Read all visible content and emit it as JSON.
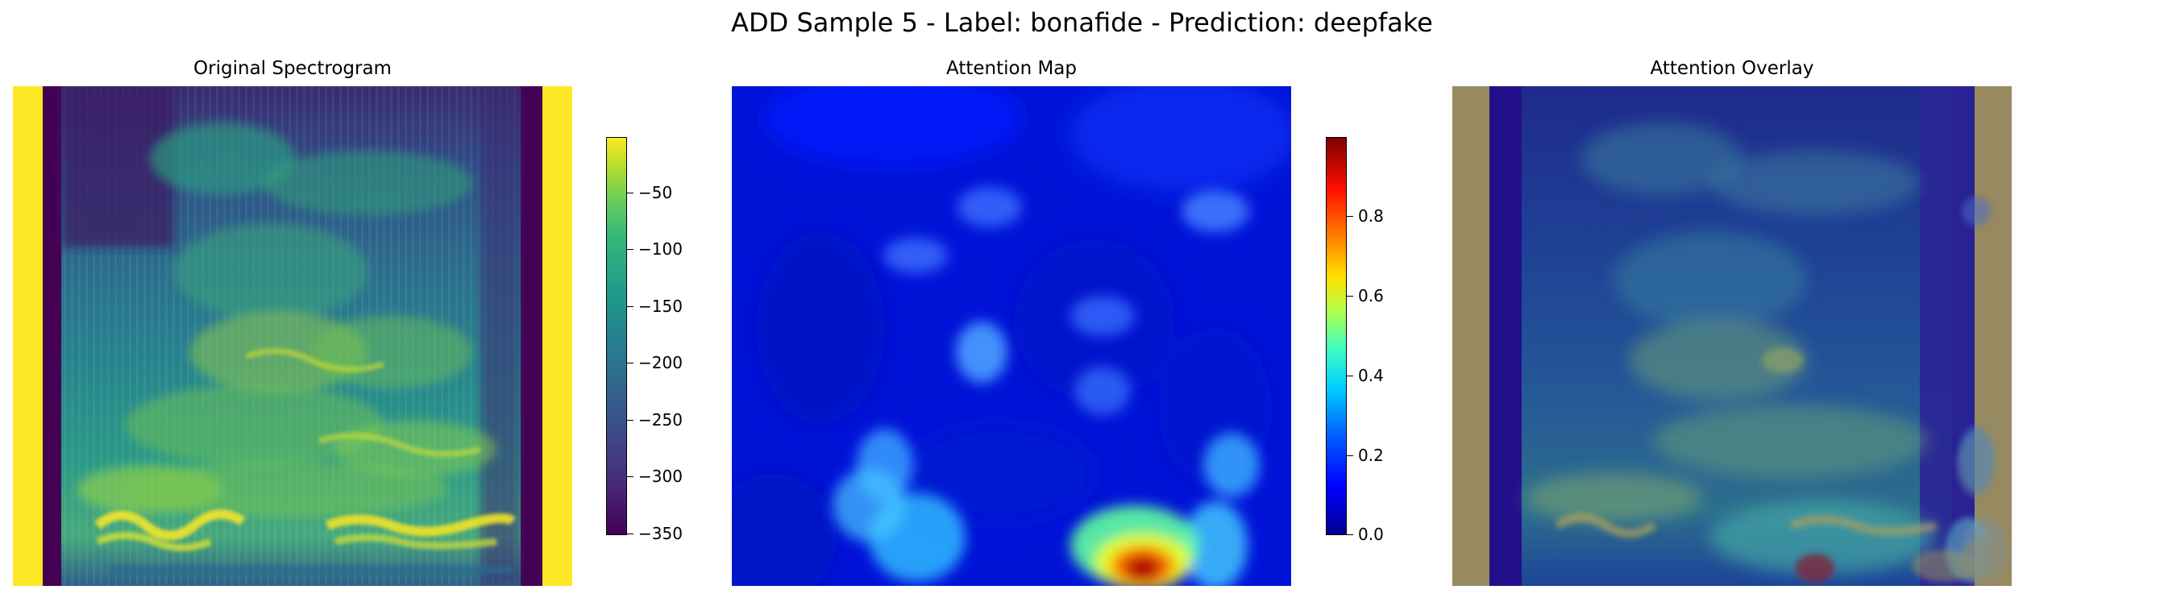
{
  "figure": {
    "title": "ADD Sample 5 - Label: bonafide - Prediction: deepfake"
  },
  "panels": [
    {
      "title": "Original Spectrogram"
    },
    {
      "title": "Attention Map"
    },
    {
      "title": "Attention Overlay"
    }
  ],
  "colorbars": {
    "spectrogram": {
      "colormap": "viridis",
      "ticks": [
        "−50",
        "−100",
        "−150",
        "−200",
        "−250",
        "−300",
        "−350"
      ],
      "tick_values": [
        -50,
        -100,
        -150,
        -200,
        -250,
        -300,
        -350
      ],
      "range": [
        -355,
        -5
      ]
    },
    "attention": {
      "colormap": "jet",
      "ticks": [
        "0.8",
        "0.6",
        "0.4",
        "0.2",
        "0.0"
      ],
      "tick_values": [
        0.8,
        0.6,
        0.4,
        0.2,
        0.0
      ],
      "range": [
        0.0,
        1.0
      ]
    }
  },
  "colors": {
    "viridis_low": "#440154",
    "viridis_high": "#fde725",
    "jet_low": "#00008f",
    "jet_high": "#800000",
    "overlay_side": "#978a60"
  }
}
